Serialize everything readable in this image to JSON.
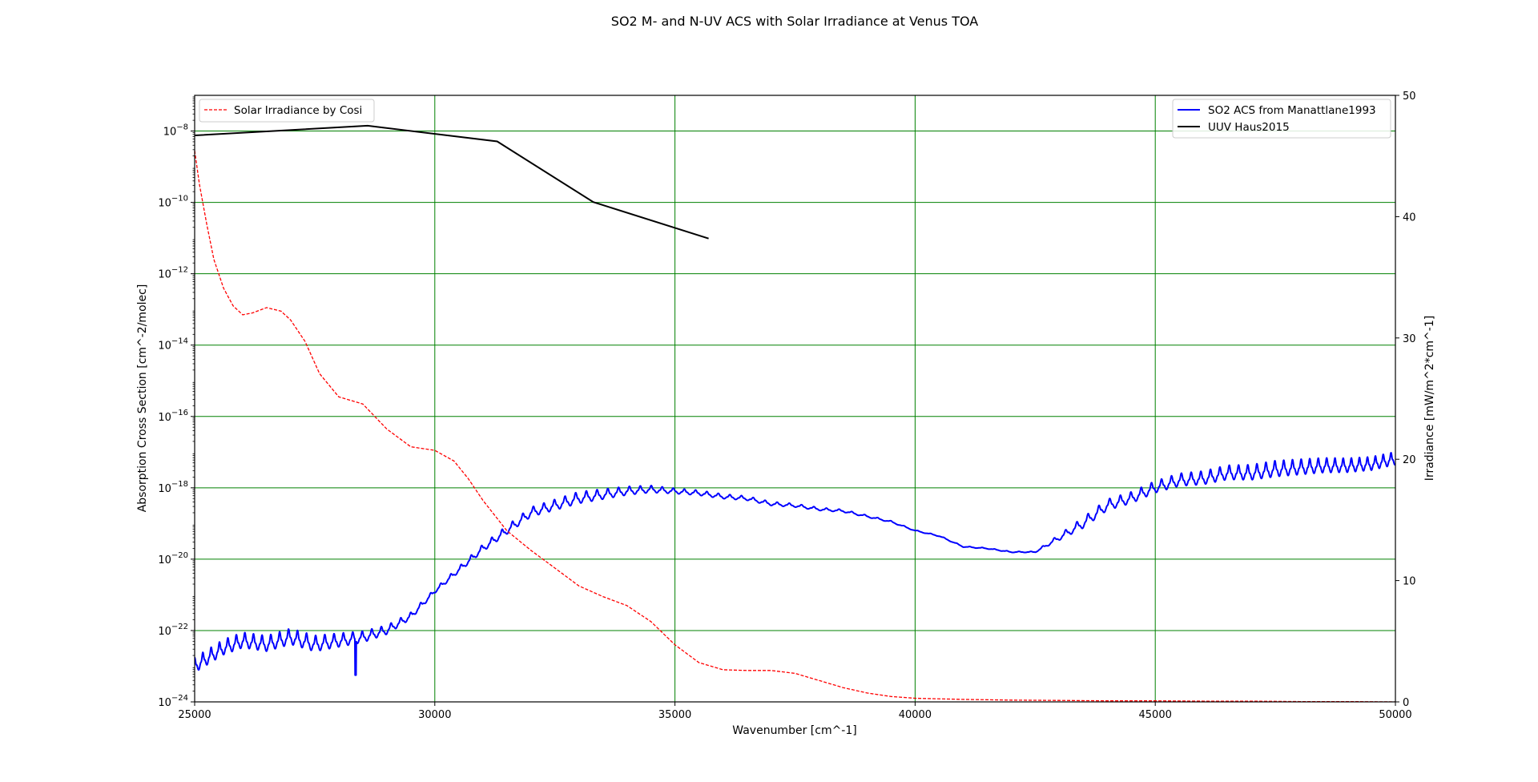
{
  "chart_data": {
    "type": "line",
    "title": "SO2 M- and N-UV ACS with Solar Irradiance at Venus TOA",
    "xlabel": "Wavenumber [cm^-1]",
    "ylabel_left": "Absorption Cross Section [cm^-2/molec]",
    "ylabel_right": "Irradiance [mW/m^2*cm^-1]",
    "xlim": [
      25000,
      50000
    ],
    "ylim_left": [
      1e-24,
      1e-07
    ],
    "ylim_left_log10": [
      -24,
      -7
    ],
    "yscale_left": "log",
    "ylim_right": [
      0,
      50
    ],
    "grid": true,
    "grid_color": "#008000",
    "x_ticks": [
      25000,
      30000,
      35000,
      40000,
      45000,
      50000
    ],
    "x_tick_labels": [
      "25000",
      "30000",
      "35000",
      "40000",
      "45000",
      "50000"
    ],
    "y_left_ticks_exp": [
      -24,
      -22,
      -20,
      -18,
      -16,
      -14,
      -12,
      -10,
      -8
    ],
    "y_left_tick_base": "10",
    "y_left_tick_exps": [
      "−24",
      "−22",
      "−20",
      "−18",
      "−16",
      "−14",
      "−12",
      "−10",
      "−8"
    ],
    "y_right_ticks": [
      0,
      10,
      20,
      30,
      40,
      50
    ],
    "y_right_tick_labels": [
      "0",
      "10",
      "20",
      "30",
      "40",
      "50"
    ],
    "legends": [
      {
        "placement": "upper-left",
        "entries": [
          {
            "label": "Solar Irradiance by Cosi",
            "color": "#ff0000",
            "style": "dashed"
          }
        ]
      },
      {
        "placement": "upper-right",
        "entries": [
          {
            "label": "SO2 ACS from Manattlane1993",
            "color": "#0000ff",
            "style": "solid"
          },
          {
            "label": "UUV Haus2015",
            "color": "#000000",
            "style": "solid"
          }
        ]
      }
    ],
    "series": [
      {
        "name": "SO2 ACS from Manattlane1993",
        "axis": "left",
        "color": "#0000ff",
        "line_style": "solid",
        "value_form": "log10",
        "envelope": {
          "x": [
            25000,
            25600,
            26000,
            26500,
            27000,
            27500,
            28000,
            28500,
            29000,
            29500,
            30000,
            30500,
            31000,
            31500,
            32000,
            32500,
            33000,
            33500,
            34000,
            34500,
            35000,
            35500,
            36000,
            36500,
            37000,
            37500,
            38000,
            38500,
            39000,
            39500,
            40000,
            40500,
            41000,
            41500,
            42000,
            42500,
            43000,
            43500,
            44000,
            44500,
            45000,
            45500,
            46000,
            46500,
            47000,
            47500,
            48000,
            48500,
            49000,
            49500,
            50000
          ],
          "log10_y": [
            -23.0,
            -22.5,
            -22.3,
            -22.4,
            -22.2,
            -22.4,
            -22.3,
            -22.2,
            -22.0,
            -21.6,
            -20.9,
            -20.3,
            -19.7,
            -19.2,
            -18.7,
            -18.5,
            -18.3,
            -18.2,
            -18.1,
            -18.05,
            -18.1,
            -18.15,
            -18.25,
            -18.3,
            -18.45,
            -18.5,
            -18.6,
            -18.65,
            -18.8,
            -18.95,
            -19.2,
            -19.35,
            -19.65,
            -19.7,
            -19.8,
            -19.8,
            -19.4,
            -19.0,
            -18.5,
            -18.3,
            -18.0,
            -17.8,
            -17.75,
            -17.6,
            -17.6,
            -17.5,
            -17.45,
            -17.4,
            -17.4,
            -17.35,
            -17.2
          ]
        },
        "oscillation": {
          "period_x": [
            25000,
            30000,
            35000,
            40000,
            45000,
            50000
          ],
          "period_values": [
            170,
            210,
            230,
            280,
            210,
            160
          ],
          "amp_x": [
            25000,
            27500,
            30000,
            31500,
            33000,
            35000,
            37000,
            38500,
            40000,
            42500,
            43500,
            45000,
            47500,
            50000
          ],
          "amp_values": [
            0.7,
            0.75,
            0.2,
            0.4,
            0.55,
            0.25,
            0.18,
            0.12,
            0.05,
            0.05,
            0.5,
            0.55,
            0.75,
            0.6
          ]
        },
        "dip": {
          "x": 28350,
          "log10_y": -23.25
        }
      },
      {
        "name": "UUV Haus2015",
        "axis": "right",
        "color": "#000000",
        "line_style": "solid",
        "x": [
          25000,
          28600,
          31300,
          33300,
          35700
        ],
        "y": [
          46.7,
          47.5,
          46.2,
          41.2,
          38.2
        ]
      },
      {
        "name": "Solar Irradiance by Cosi",
        "axis": "left",
        "color": "#ff0000",
        "line_style": "dashed",
        "value_form": "log10",
        "x": [
          25000,
          25100,
          25250,
          25400,
          25600,
          25800,
          26000,
          26200,
          26500,
          26800,
          27000,
          27300,
          27600,
          28000,
          28500,
          29000,
          29500,
          30000,
          30400,
          30700,
          31000,
          31500,
          32000,
          32500,
          33000,
          33500,
          34000,
          34500,
          35000,
          35500,
          36000,
          36500,
          37000,
          37500,
          38000,
          38500,
          39000,
          39500,
          40000,
          41000,
          42000,
          43000,
          44000,
          45000,
          46000,
          47000,
          48000,
          49000,
          50000
        ],
        "log10_y": [
          -8.55,
          -9.5,
          -10.6,
          -11.6,
          -12.4,
          -12.9,
          -13.15,
          -13.1,
          -12.95,
          -13.05,
          -13.3,
          -13.9,
          -14.8,
          -15.45,
          -15.65,
          -16.35,
          -16.85,
          -16.95,
          -17.25,
          -17.75,
          -18.35,
          -19.2,
          -19.75,
          -20.25,
          -20.75,
          -21.05,
          -21.3,
          -21.75,
          -22.4,
          -22.9,
          -23.1,
          -23.12,
          -23.12,
          -23.2,
          -23.4,
          -23.6,
          -23.75,
          -23.85,
          -23.9,
          -23.93,
          -23.95,
          -23.96,
          -23.97,
          -23.97,
          -23.98,
          -23.98,
          -23.99,
          -23.99,
          -24.0
        ]
      }
    ]
  }
}
